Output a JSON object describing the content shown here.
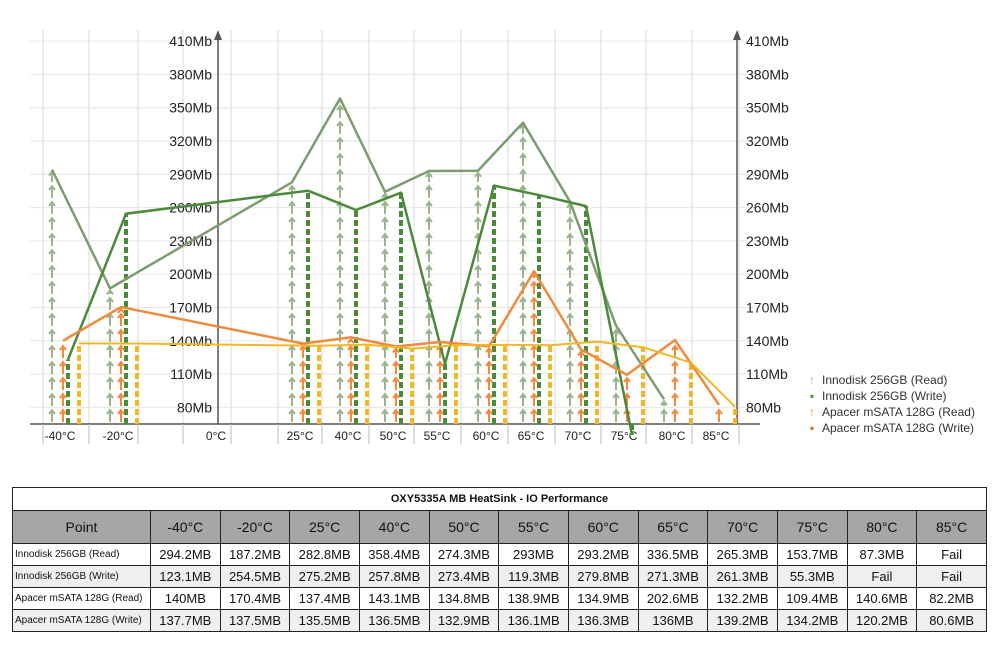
{
  "chart_data": {
    "type": "bar",
    "categories": [
      "-40°C",
      "-20°C",
      "0°C",
      "25°C",
      "40°C",
      "50°C",
      "55°C",
      "60°C",
      "65°C",
      "70°C",
      "75°C",
      "80°C",
      "85°C"
    ],
    "y_tick_labels": [
      "80Mb",
      "110Mb",
      "140Mb",
      "170Mb",
      "200Mb",
      "230Mb",
      "260Mb",
      "290Mb",
      "320Mb",
      "350Mb",
      "380Mb",
      "410Mb"
    ],
    "ylim": [
      65,
      420
    ],
    "series": [
      {
        "name": "Innodisk 256GB (Read)",
        "color": "#9ab48c",
        "line_color": "#7d9c70",
        "symbol": "↑",
        "values": [
          294.2,
          187.2,
          null,
          282.8,
          358.4,
          274.3,
          293,
          293.2,
          336.5,
          265.3,
          153.7,
          87.3,
          null
        ]
      },
      {
        "name": "Innodisk 256GB (Write)",
        "color": "#4b8a3b",
        "line_color": "#4b8a3b",
        "symbol": "▪",
        "values": [
          123.1,
          254.5,
          null,
          275.2,
          257.8,
          273.4,
          119.3,
          279.8,
          271.3,
          261.3,
          55.3,
          null,
          null
        ]
      },
      {
        "name": "Apacer mSATA 128G (Read)",
        "color": "#f08a3c",
        "line_color": "#f08a3c",
        "symbol": "↑",
        "values": [
          140,
          170.4,
          null,
          137.4,
          143.1,
          134.8,
          138.9,
          134.9,
          202.6,
          132.2,
          109.4,
          140.6,
          82.2
        ]
      },
      {
        "name": "Apacer mSATA 128G (Write)",
        "color": "#e06a16",
        "line_color": "#f2b824",
        "bar_color": "#f2b824",
        "symbol": "▪",
        "values": [
          137.7,
          137.5,
          null,
          135.5,
          136.5,
          132.9,
          136.1,
          136.3,
          136,
          139.2,
          134.2,
          120.2,
          80.6
        ]
      }
    ],
    "grid": true,
    "legend_position": "bottom-right"
  },
  "table": {
    "caption": "OXY5335A MB HeatSink - IO Performance",
    "header": [
      "Point",
      "-40°C",
      "-20°C",
      "25°C",
      "40°C",
      "50°C",
      "55°C",
      "60°C",
      "65°C",
      "70°C",
      "75°C",
      "80°C",
      "85°C"
    ],
    "rows": [
      {
        "label": "Innodisk 256GB (Read)",
        "cells": [
          "294.2MB",
          "187.2MB",
          "282.8MB",
          "358.4MB",
          "274.3MB",
          "293MB",
          "293.2MB",
          "336.5MB",
          "265.3MB",
          "153.7MB",
          "87.3MB",
          "Fail"
        ]
      },
      {
        "label": "Innodisk 256GB (Write)",
        "cells": [
          "123.1MB",
          "254.5MB",
          "275.2MB",
          "257.8MB",
          "273.4MB",
          "119.3MB",
          "279.8MB",
          "271.3MB",
          "261.3MB",
          "55.3MB",
          "Fail",
          "Fail"
        ]
      },
      {
        "label": "Apacer mSATA 128G (Read)",
        "cells": [
          "140MB",
          "170.4MB",
          "137.4MB",
          "143.1MB",
          "134.8MB",
          "138.9MB",
          "134.9MB",
          "202.6MB",
          "132.2MB",
          "109.4MB",
          "140.6MB",
          "82.2MB"
        ]
      },
      {
        "label": "Apacer mSATA 128G (Write)",
        "cells": [
          "137.7MB",
          "137.5MB",
          "135.5MB",
          "136.5MB",
          "132.9MB",
          "136.1MB",
          "136.3MB",
          "136MB",
          "139.2MB",
          "134.2MB",
          "120.2MB",
          "80.6MB"
        ]
      }
    ]
  }
}
